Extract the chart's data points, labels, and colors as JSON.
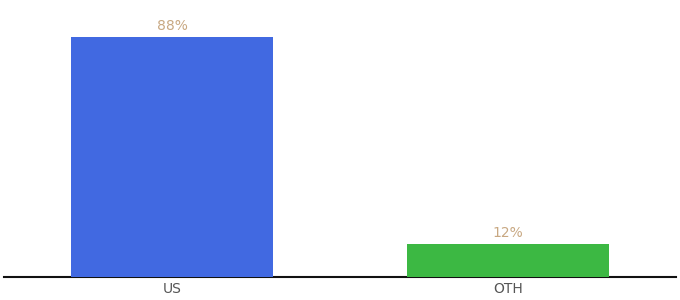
{
  "categories": [
    "US",
    "OTH"
  ],
  "values": [
    88,
    12
  ],
  "bar_colors": [
    "#4169e1",
    "#3cb843"
  ],
  "label_color": "#c8a882",
  "label_fontsize": 10,
  "tick_fontsize": 10,
  "tick_color": "#555555",
  "background_color": "#ffffff",
  "ylim": [
    0,
    100
  ],
  "bar_width": 0.6,
  "annotations": [
    "88%",
    "12%"
  ],
  "xlim": [
    -0.5,
    1.5
  ]
}
